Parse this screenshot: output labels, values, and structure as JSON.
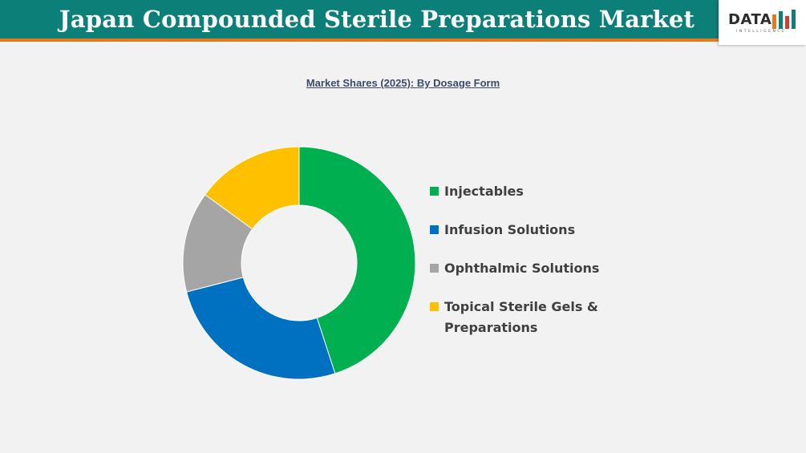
{
  "header": {
    "title": "Japan Compounded Sterile Preparations Market",
    "logo_word": "DATA",
    "logo_sub": "INTELLIGENCE"
  },
  "chart_data": {
    "type": "pie",
    "donut": true,
    "subtitle": "Market Shares (2025): By  Dosage Form",
    "legend_position": "right",
    "series": [
      {
        "name": "Injectables",
        "value": 45,
        "color": "#00b050"
      },
      {
        "name": "Infusion Solutions",
        "value": 26,
        "color": "#0070c0"
      },
      {
        "name": "Ophthalmic Solutions",
        "value": 14,
        "color": "#a5a5a5"
      },
      {
        "name": "Topical Sterile Gels & Preparations",
        "value": 15,
        "color": "#ffc000"
      }
    ]
  },
  "colors": {
    "header_bg": "#0b7f78",
    "header_accent": "#e8781e",
    "background": "#f2f2f2"
  }
}
